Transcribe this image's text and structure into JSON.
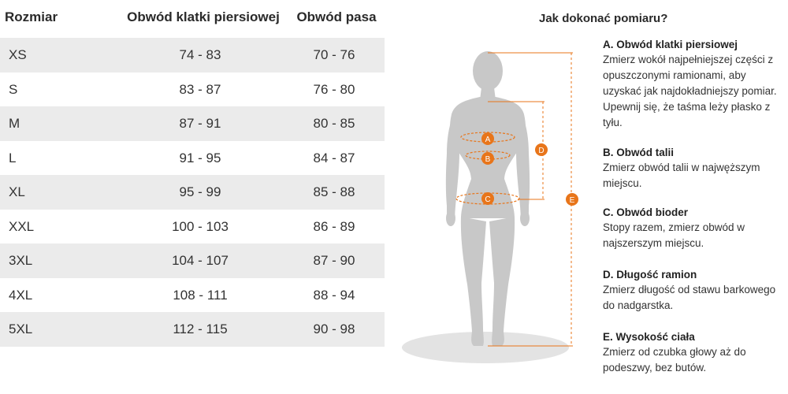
{
  "table": {
    "headers": {
      "size": "Rozmiar",
      "chest": "Obwód klatki piersiowej",
      "waist": "Obwód pasa"
    },
    "rows": [
      {
        "size": "XS",
        "chest": "74 - 83",
        "waist": "70 - 76"
      },
      {
        "size": "S",
        "chest": "83 - 87",
        "waist": "76 - 80"
      },
      {
        "size": "M",
        "chest": "87 - 91",
        "waist": "80 - 85"
      },
      {
        "size": "L",
        "chest": "91 - 95",
        "waist": "84 - 87"
      },
      {
        "size": "XL",
        "chest": "95 - 99",
        "waist": "85 - 88"
      },
      {
        "size": "XXL",
        "chest": "100 - 103",
        "waist": "86 - 89"
      },
      {
        "size": "3XL",
        "chest": "104 - 107",
        "waist": "87 - 90"
      },
      {
        "size": "4XL",
        "chest": "108 - 111",
        "waist": "88 - 94"
      },
      {
        "size": "5XL",
        "chest": "112 - 115",
        "waist": "90 - 98"
      }
    ]
  },
  "figure": {
    "markers": {
      "a": "A",
      "b": "B",
      "c": "C",
      "d": "D",
      "e": "E"
    },
    "marker_color": "#e8751a",
    "body_color": "#c8c8c8"
  },
  "instructions": {
    "title": "Jak dokonać pomiaru?",
    "items": [
      {
        "title": "A. Obwód klatki piersiowej",
        "lines": [
          "Zmierz wokół najpełniejszej części z",
          "opuszczonymi ramionami, aby",
          "uzyskać jak najdokładniejszy pomiar.",
          "Upewnij się, że taśma leży płasko z",
          "tyłu."
        ]
      },
      {
        "title": "B. Obwód talii",
        "lines": [
          "Zmierz obwód talii w najwęższym",
          "miejscu."
        ]
      },
      {
        "title": "C. Obwód bioder",
        "lines": [
          "Stopy razem, zmierz obwód w",
          "najszerszym miejscu."
        ]
      },
      {
        "title": "D. Długość ramion",
        "lines": [
          "Zmierz długość od stawu barkowego",
          "do nadgarstka."
        ]
      },
      {
        "title": "E. Wysokość ciała",
        "lines": [
          "Zmierz od czubka głowy aż do",
          "podeszwy, bez butów."
        ]
      }
    ]
  }
}
